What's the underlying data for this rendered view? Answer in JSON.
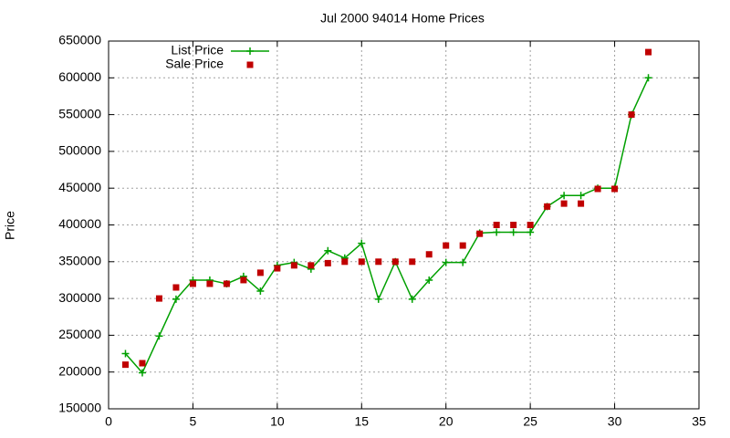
{
  "chart_data": {
    "type": "line",
    "title": "Jul 2000 94014 Home Prices",
    "y_label": "Price",
    "x": [
      1,
      2,
      3,
      4,
      5,
      6,
      7,
      8,
      9,
      10,
      11,
      12,
      13,
      14,
      15,
      16,
      17,
      18,
      19,
      20,
      21,
      22,
      23,
      24,
      25,
      26,
      27,
      28,
      29,
      30,
      31,
      32
    ],
    "series": [
      {
        "name": "List Price",
        "color": "#00a000",
        "style": "linespoints",
        "values": [
          225000,
          199000,
          249000,
          299000,
          325000,
          325000,
          320000,
          330000,
          310000,
          345000,
          349000,
          340000,
          365000,
          355000,
          375000,
          299000,
          350000,
          299000,
          325000,
          349000,
          349000,
          389000,
          390000,
          390000,
          390000,
          425000,
          440000,
          440000,
          450000,
          450000,
          550000,
          600000
        ]
      },
      {
        "name": "Sale Price",
        "color": "#c00000",
        "style": "points",
        "values": [
          210000,
          212000,
          300000,
          315000,
          320000,
          320000,
          320000,
          325000,
          335000,
          341000,
          345000,
          345000,
          348000,
          350000,
          350000,
          350000,
          350000,
          350000,
          360000,
          372000,
          372000,
          388000,
          400000,
          400000,
          400000,
          425000,
          429000,
          429000,
          449000,
          449000,
          550000,
          635000
        ]
      }
    ],
    "xlim": [
      0,
      35
    ],
    "xticks": [
      0,
      5,
      10,
      15,
      20,
      25,
      30,
      35
    ],
    "ylim": [
      150000,
      650000
    ],
    "yticks": [
      150000,
      200000,
      250000,
      300000,
      350000,
      400000,
      450000,
      500000,
      550000,
      600000,
      650000
    ],
    "grid": true,
    "legend": "top-left"
  }
}
